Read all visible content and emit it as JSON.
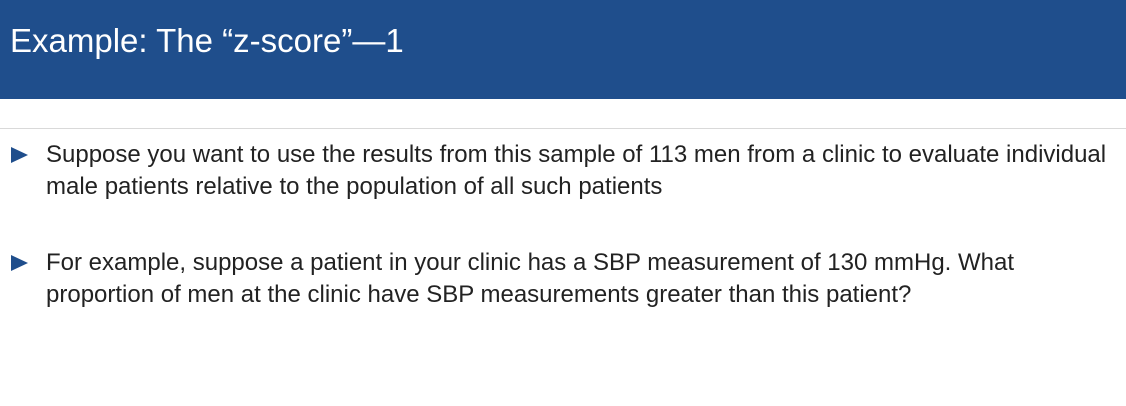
{
  "slide": {
    "title": "Example: The “z-score”—1",
    "bullets": [
      {
        "text": "Suppose you want to use the results from this sample of 113 men from a clinic to evaluate individual male patients relative to the population of all such patients"
      },
      {
        "text": "For example, suppose a patient in your clinic has a SBP measurement of 130 mmHg. What proportion of men at the clinic have SBP measurements greater than this patient?"
      }
    ]
  },
  "colors": {
    "title_bar": "#1f4e8c",
    "bullet_marker": "#1f4e8c",
    "body_text": "#222222"
  },
  "icons": {
    "bullet": "triangle-right-icon"
  }
}
